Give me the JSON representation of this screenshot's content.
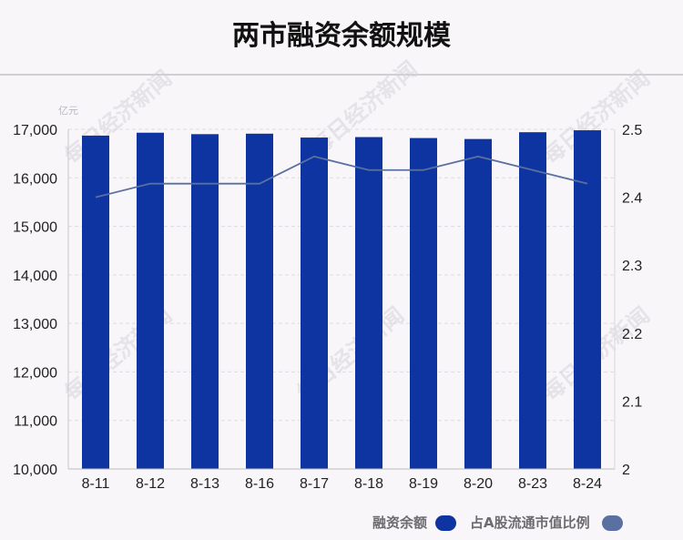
{
  "chart_data": {
    "type": "bar",
    "title": "两市融资余额规模",
    "y_unit": "亿元",
    "categories": [
      "8-11",
      "8-12",
      "8-13",
      "8-16",
      "8-17",
      "8-18",
      "8-19",
      "8-20",
      "8-23",
      "8-24"
    ],
    "series": [
      {
        "name": "融资余额",
        "type": "bar",
        "axis": "left",
        "color": "#0d34a0",
        "values": [
          16870,
          16930,
          16900,
          16910,
          16830,
          16840,
          16820,
          16800,
          16940,
          16980
        ]
      },
      {
        "name": "占A股流通市值比例",
        "type": "line",
        "axis": "right",
        "color": "#5a70a0",
        "values": [
          2.4,
          2.42,
          2.42,
          2.42,
          2.46,
          2.44,
          2.44,
          2.46,
          2.44,
          2.42
        ]
      }
    ],
    "y_left": {
      "min": 10000,
      "max": 17000,
      "ticks": [
        "10,000",
        "11,000",
        "12,000",
        "13,000",
        "14,000",
        "15,000",
        "16,000",
        "17,000"
      ]
    },
    "y_right": {
      "min": 2,
      "max": 2.5,
      "ticks": [
        "2",
        "2.1",
        "2.2",
        "2.3",
        "2.4",
        "2.5"
      ]
    },
    "grid": "horizontal-dashed",
    "legend_position": "bottom-right",
    "watermark_text": "每日经济新闻"
  }
}
